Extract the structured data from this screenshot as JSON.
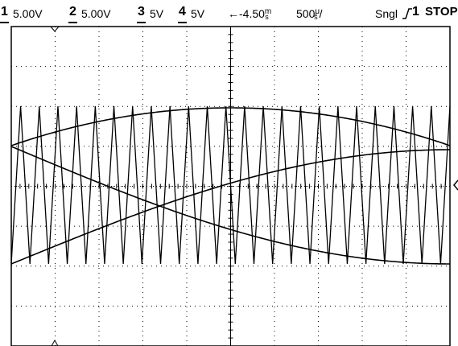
{
  "status": {
    "ch1": {
      "num": "1",
      "scale": "5.00V"
    },
    "ch2": {
      "num": "2",
      "scale": "5.00V"
    },
    "ch3": {
      "num": "3",
      "scale": "5V"
    },
    "ch4": {
      "num": "4",
      "scale": "5V"
    },
    "delay": "←-4.50",
    "delay_unit": "m",
    "delay_unit_sub": "s",
    "timebase": "500",
    "timebase_unit": "μ",
    "timebase_unit_sub": "s",
    "timebase_slash": "/",
    "trigger_mode": "Sngl",
    "trigger_slope_icon": "rising-edge-icon",
    "trigger_source": "1",
    "run_state": "STOP"
  },
  "colors": {
    "background": "#ffffff",
    "grid": "#000000",
    "trace": "#000000"
  },
  "grid": {
    "divisions_x": 10,
    "divisions_y": 8
  },
  "traces": {
    "triangle_cycles": 23.5,
    "sine_cycles": 0.5
  }
}
